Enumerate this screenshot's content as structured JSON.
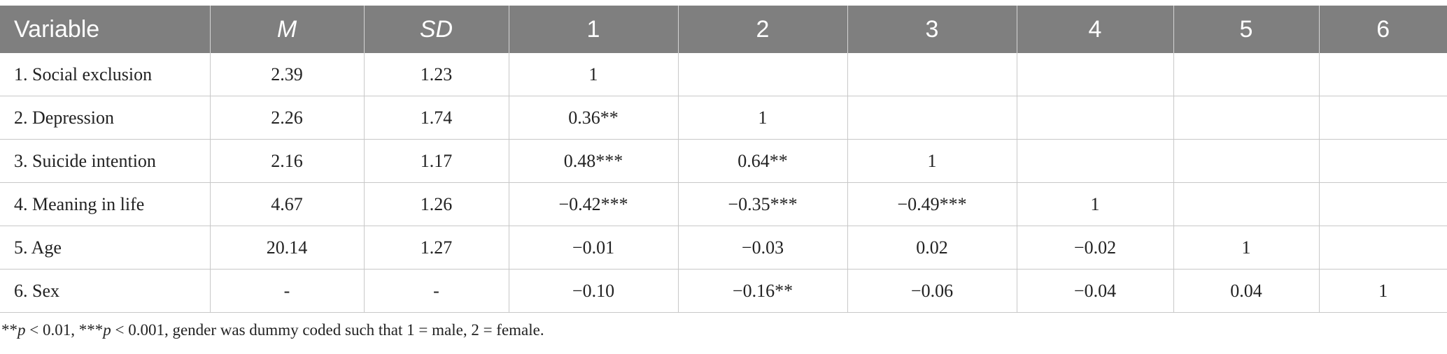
{
  "table": {
    "headers": [
      "Variable",
      "M",
      "SD",
      "1",
      "2",
      "3",
      "4",
      "5",
      "6"
    ],
    "rows": [
      [
        "1. Social exclusion",
        "2.39",
        "1.23",
        "1",
        "",
        "",
        "",
        "",
        ""
      ],
      [
        "2. Depression",
        "2.26",
        "1.74",
        "0.36**",
        "1",
        "",
        "",
        "",
        ""
      ],
      [
        "3. Suicide intention",
        "2.16",
        "1.17",
        "0.48***",
        "0.64**",
        "1",
        "",
        "",
        ""
      ],
      [
        "4. Meaning in life",
        "4.67",
        "1.26",
        "−0.42***",
        "−0.35***",
        "−0.49***",
        "1",
        "",
        ""
      ],
      [
        "5. Age",
        "20.14",
        "1.27",
        "−0.01",
        "−0.03",
        "0.02",
        "−0.02",
        "1",
        ""
      ],
      [
        "6. Sex",
        "-",
        "-",
        "−0.10",
        "−0.16**",
        "−0.06",
        "−0.04",
        "0.04",
        "1"
      ]
    ]
  },
  "note": {
    "stars1": "**",
    "p1": "p",
    "text1": " < 0.01, ",
    "stars2": "***",
    "p2": "p",
    "text2": " < 0.001, gender was dummy coded such that 1 = male, 2 = female."
  }
}
